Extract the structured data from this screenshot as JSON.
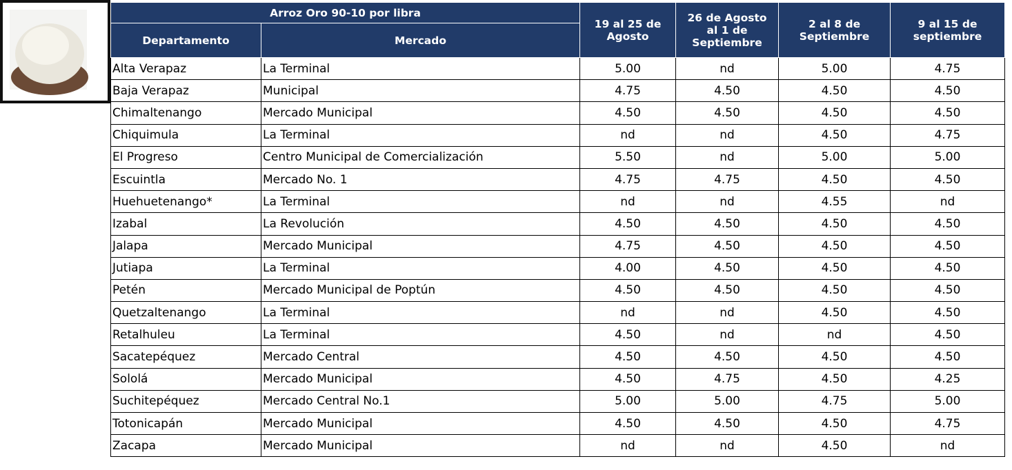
{
  "table": {
    "title": "Arroz Oro 90-10 por libra",
    "columns": [
      "Departamento",
      "Mercado"
    ],
    "weeks": [
      {
        "lines": [
          "19 al 25 de",
          "Agosto"
        ]
      },
      {
        "lines": [
          "26 de Agosto",
          "al 1 de",
          "Septiembre"
        ]
      },
      {
        "lines": [
          "2 al 8 de",
          "Septiembre"
        ]
      },
      {
        "lines": [
          "9 al 15 de",
          "septiembre"
        ]
      }
    ],
    "rows": [
      [
        "Alta Verapaz",
        "La Terminal",
        "5.00",
        "nd",
        "5.00",
        "4.75"
      ],
      [
        "Baja Verapaz",
        "Municipal",
        "4.75",
        "4.50",
        "4.50",
        "4.50"
      ],
      [
        "Chimaltenango",
        "Mercado Municipal",
        "4.50",
        "4.50",
        "4.50",
        "4.50"
      ],
      [
        "Chiquimula",
        "La Terminal",
        "nd",
        "nd",
        "4.50",
        "4.75"
      ],
      [
        "El Progreso",
        "Centro Municipal de Comercialización",
        "5.50",
        "nd",
        "5.00",
        "5.00"
      ],
      [
        "Escuintla",
        "Mercado No. 1",
        "4.75",
        "4.75",
        "4.50",
        "4.50"
      ],
      [
        "Huehuetenango*",
        "La Terminal",
        "nd",
        "nd",
        "4.55",
        "nd"
      ],
      [
        "Izabal",
        "La Revolución",
        "4.50",
        "4.50",
        "4.50",
        "4.50"
      ],
      [
        "Jalapa",
        "Mercado Municipal",
        "4.75",
        "4.50",
        "4.50",
        "4.50"
      ],
      [
        "Jutiapa",
        "La Terminal",
        "4.00",
        "4.50",
        "4.50",
        "4.50"
      ],
      [
        "Petén",
        "Mercado Municipal de Poptún",
        "4.50",
        "4.50",
        "4.50",
        "4.50"
      ],
      [
        "Quetzaltenango",
        "La Terminal",
        "nd",
        "nd",
        "4.50",
        "4.50"
      ],
      [
        "Retalhuleu",
        "La Terminal",
        "4.50",
        "nd",
        "nd",
        "4.50"
      ],
      [
        "Sacatepéquez",
        "Mercado Central",
        "4.50",
        "4.50",
        "4.50",
        "4.50"
      ],
      [
        "Sololá",
        "Mercado Municipal",
        "4.50",
        "4.75",
        "4.50",
        "4.25"
      ],
      [
        "Suchitepéquez",
        "Mercado Central No.1",
        "5.00",
        "5.00",
        "4.75",
        "5.00"
      ],
      [
        "Totonicapán",
        "Mercado Municipal",
        "4.50",
        "4.50",
        "4.50",
        "4.75"
      ],
      [
        "Zacapa",
        "Mercado Municipal",
        "nd",
        "nd",
        "4.50",
        "nd"
      ]
    ]
  }
}
